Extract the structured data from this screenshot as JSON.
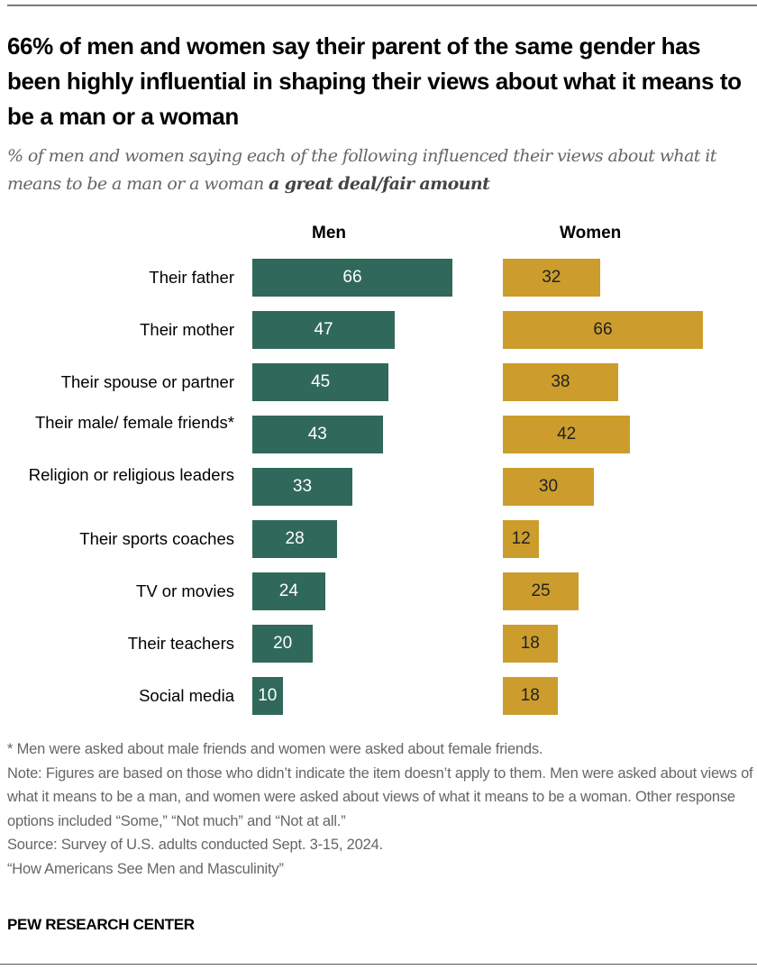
{
  "title": "66% of men and women say their parent of the same gender has been highly influential in shaping their views about what it means to be a man or a woman",
  "subtitle_plain": "% of men and women saying each of the following influenced their views about what it means to be a man or a woman",
  "subtitle_bold": "a great deal/fair amount",
  "chart_data": {
    "type": "bar",
    "orientation": "horizontal",
    "categories": [
      "Their father",
      "Their mother",
      "Their spouse or partner",
      "Their male/ female friends*",
      "Religion or religious leaders",
      "Their sports coaches",
      "TV or movies",
      "Their teachers",
      "Social media"
    ],
    "series": [
      {
        "name": "Men",
        "color": "#30695b",
        "values": [
          66,
          47,
          45,
          43,
          33,
          28,
          24,
          20,
          10
        ]
      },
      {
        "name": "Women",
        "color": "#cc9d2c",
        "values": [
          32,
          66,
          38,
          42,
          30,
          12,
          25,
          18,
          18
        ]
      }
    ],
    "xlim": [
      0,
      66
    ],
    "grid": false,
    "data_labels": true
  },
  "notes": [
    "* Men were asked about male friends and women were asked about female friends.",
    "Note: Figures are based on those who didn’t indicate the item doesn’t apply to them. Men were asked about views of what it means to be a man, and women were asked about views of what it means to be a woman. Other response options included “Some,” “Not much” and “Not at all.”",
    "Source: Survey of U.S. adults conducted Sept. 3-15, 2024.",
    "“How Americans See Men and Masculinity”"
  ],
  "brand": "PEW RESEARCH CENTER"
}
